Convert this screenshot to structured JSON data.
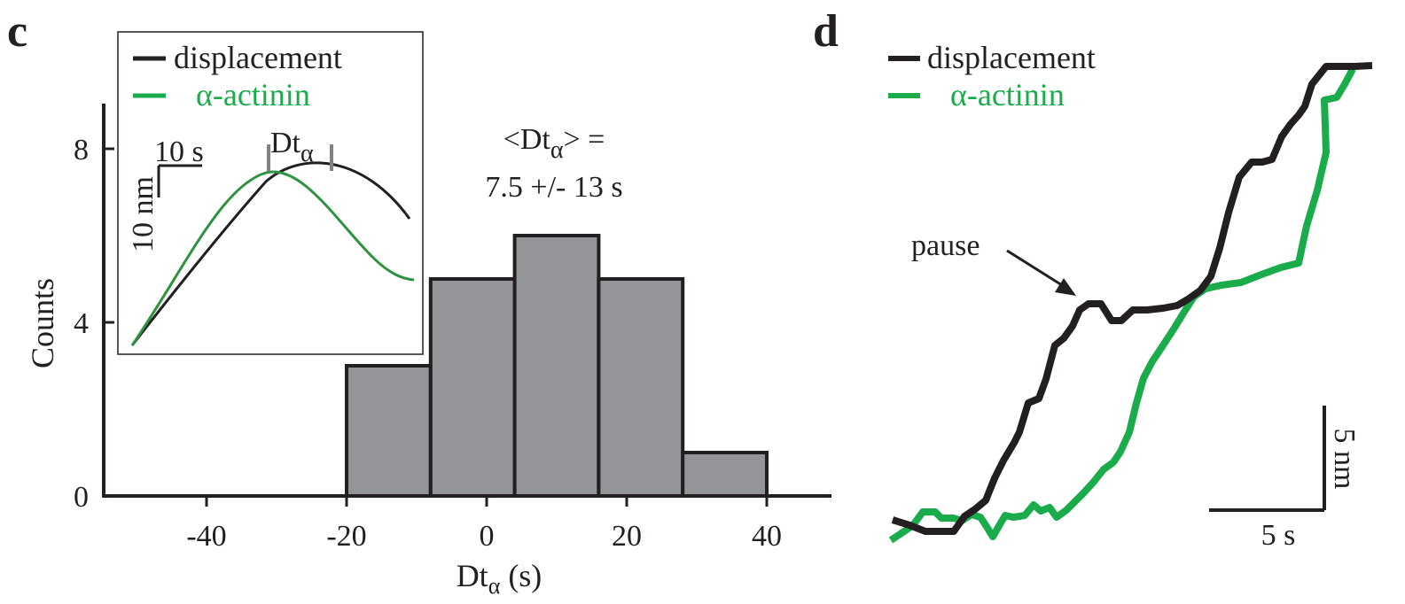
{
  "colors": {
    "black": "#231f20",
    "green": "#1aab4b",
    "bar_fill": "#939598",
    "inset_gray": "#808285"
  },
  "panel_c": {
    "letter": "c",
    "legend": {
      "displacement": "displacement",
      "alpha_actinin": "α-actinin"
    },
    "annotation_line1_prefix": "<Dt",
    "annotation_line1_sub": "α",
    "annotation_line1_suffix": "> =",
    "annotation_line2": "7.5 +/- 13 s",
    "inset": {
      "time_scale": "10 s",
      "disp_scale": "10 nm",
      "lag_label": "Dt",
      "lag_label_sub": "α"
    }
  },
  "panel_d": {
    "letter": "d",
    "legend": {
      "displacement": "displacement",
      "alpha_actinin": "α-actinin"
    },
    "pause_label": "pause",
    "time_scale": "5 s",
    "disp_scale": "5 nm"
  },
  "chart_data": [
    {
      "type": "bar",
      "title": "",
      "xlabel": "Dt",
      "xlabel_sub": "α",
      "xlabel_unit": " (s)",
      "ylabel": "Counts",
      "xlim": [
        -55,
        53
      ],
      "ylim": [
        0,
        9
      ],
      "xticks": [
        -40,
        -20,
        0,
        20,
        40
      ],
      "yticks": [
        0,
        4,
        8
      ],
      "bins": [
        {
          "x0": -20,
          "x1": -8,
          "count": 3
        },
        {
          "x0": -8,
          "x1": 4,
          "count": 5
        },
        {
          "x0": 4,
          "x1": 16,
          "count": 6
        },
        {
          "x0": 16,
          "x1": 28,
          "count": 5
        },
        {
          "x0": 28,
          "x1": 40,
          "count": 1
        }
      ],
      "grid": false,
      "legend": "top-left"
    }
  ]
}
